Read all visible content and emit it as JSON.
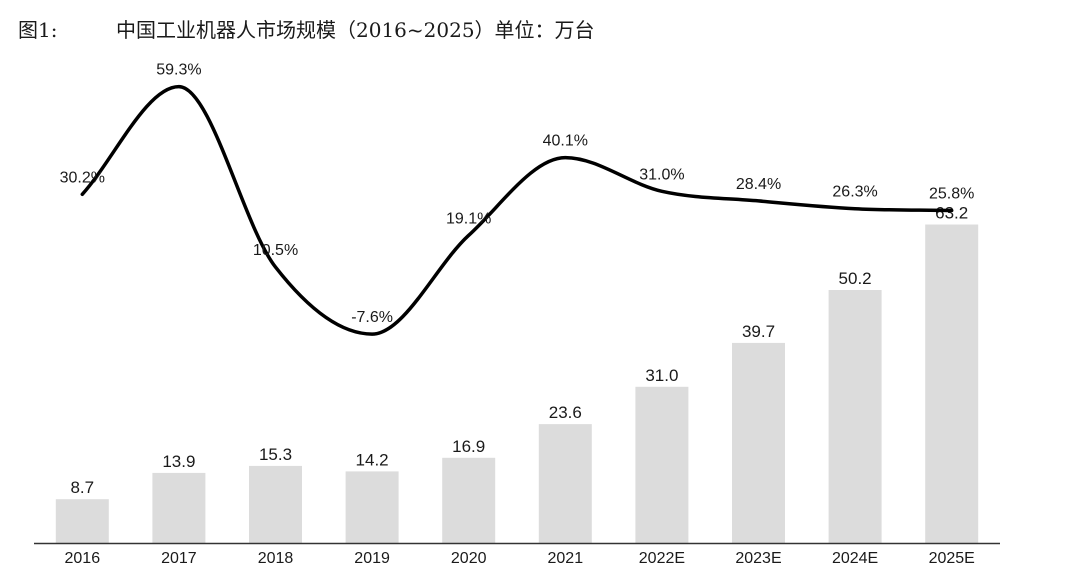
{
  "figure": {
    "label": "图1:",
    "title": "中国工业机器人市场规模（2016~2025）单位：万台"
  },
  "colors": {
    "bar": "#dcdcdc",
    "line": "#000000",
    "axis": "#333333"
  },
  "chart_data": {
    "type": "bar",
    "title": "中国工业机器人市场规模（2016~2025）单位：万台",
    "categories": [
      "2016",
      "2017",
      "2018",
      "2019",
      "2020",
      "2021",
      "2022E",
      "2023E",
      "2024E",
      "2025E"
    ],
    "series": [
      {
        "type": "bar",
        "values": [
          8.7,
          13.9,
          15.3,
          14.2,
          16.9,
          23.6,
          31.0,
          39.7,
          50.2,
          63.2
        ],
        "labels": [
          "8.7",
          "13.9",
          "15.3",
          "14.2",
          "16.9",
          "23.6",
          "31.0",
          "39.7",
          "50.2",
          "63.2"
        ]
      },
      {
        "type": "line",
        "values": [
          30.2,
          59.3,
          10.5,
          -7.6,
          19.1,
          40.1,
          31.0,
          28.4,
          26.3,
          25.8
        ],
        "labels": [
          "30.2%",
          "59.3%",
          "10.5%",
          "-7.6%",
          "19.1%",
          "40.1%",
          "31.0%",
          "28.4%",
          "26.3%",
          "25.8%"
        ]
      }
    ],
    "xlabel": "",
    "ylabel": "",
    "grid": false,
    "legend": "none"
  }
}
